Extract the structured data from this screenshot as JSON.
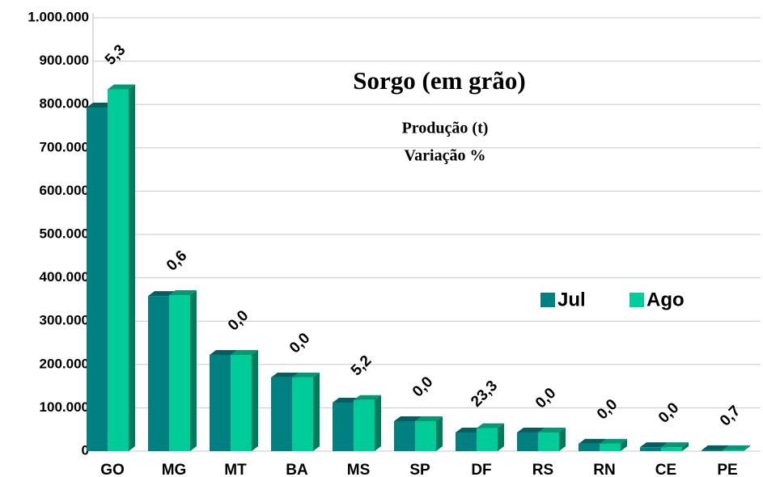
{
  "chart_data": {
    "type": "bar3d",
    "title": "Sorgo (em grão)",
    "subtitle": "Produção (t)",
    "categories": [
      "GO",
      "MG",
      "MT",
      "BA",
      "MS",
      "SP",
      "DF",
      "RS",
      "RN",
      "CE",
      "PE"
    ],
    "series": [
      {
        "name": "Jul",
        "color": "#008080",
        "values": [
          793000,
          358000,
          222000,
          170000,
          112000,
          69000,
          43000,
          43000,
          17000,
          9000,
          2000
        ]
      },
      {
        "name": "Ago",
        "color": "#00cc99",
        "values": [
          835000,
          360000,
          222000,
          170000,
          118000,
          69000,
          53000,
          43000,
          17000,
          9000,
          2000
        ]
      }
    ],
    "variation": {
      "name": "Variação %",
      "values": [
        5.3,
        0.6,
        0,
        0,
        5.2,
        0,
        23.3,
        0,
        0,
        0,
        0.7
      ],
      "value_labels": [
        "5,3",
        "0,6",
        "0,0",
        "0,0",
        "5,2",
        "0,0",
        "23,3",
        "0,0",
        "0,0",
        "0,0",
        "0,7"
      ]
    },
    "ylim": [
      0,
      1000000
    ],
    "yticks": [
      0,
      {
        "value": 100000,
        "label": "100.000"
      },
      {
        "value": 200000,
        "label": "200.000"
      },
      {
        "value": 300000,
        "label": "300.000"
      },
      {
        "value": 400000,
        "label": "400.000"
      },
      {
        "value": 500000,
        "label": "500.000"
      },
      {
        "value": 600000,
        "label": "600.000"
      },
      {
        "value": 700000,
        "label": "700.000"
      },
      {
        "value": 800000,
        "label": "800.000"
      },
      {
        "value": 900000,
        "label": "900.000"
      },
      {
        "value": 1000000,
        "label": "1.000.000"
      }
    ],
    "grid": true,
    "legend": "right"
  }
}
